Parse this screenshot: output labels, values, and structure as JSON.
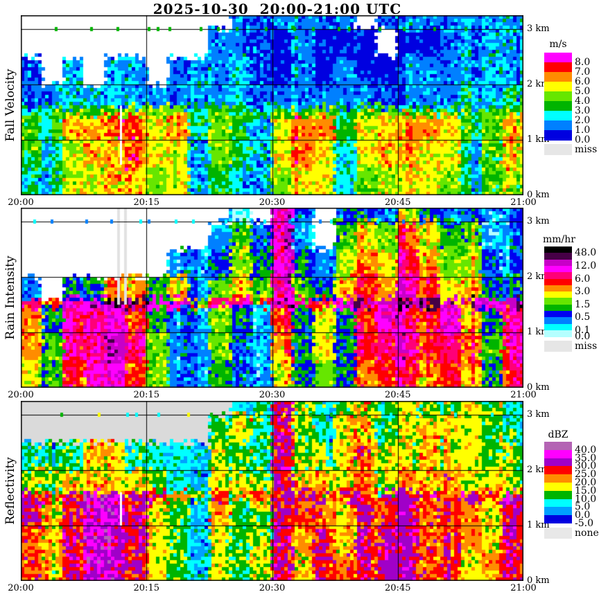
{
  "title": "2025-10-30  20:00-21:00 UTC",
  "x_axis": {
    "tick_labels": [
      "20:00",
      "20:15",
      "20:30",
      "20:45",
      "21:00"
    ],
    "gridline_times": [
      "20:15",
      "20:30",
      "20:45"
    ]
  },
  "y_axis": {
    "tick_labels": [
      "3 km",
      "2 km",
      "1 km",
      "0 km"
    ],
    "gridlines_km": [
      1,
      2,
      3
    ]
  },
  "chart_data": [
    {
      "type": "heatmap",
      "name": "fall_velocity",
      "ylabel": "Fall Velocity",
      "unit": "m/s",
      "time_range_utc": [
        "20:00",
        "21:00"
      ],
      "height_range_km": [
        0,
        3.25
      ],
      "bright_band_km": 1.5,
      "background": "#FFFFFF",
      "palette": {
        "levels": [
          0,
          1,
          2,
          3,
          4,
          5,
          6,
          7,
          8
        ],
        "colors": [
          "#0000E0",
          "#0080FF",
          "#00FFFF",
          "#00B400",
          "#66E600",
          "#FFFF00",
          "#FF8C00",
          "#FF0000",
          "#FF00FF"
        ]
      },
      "legend": {
        "unit": "m/s",
        "bands_top_to_bottom": [
          {
            "c": "#FF00FF",
            "l": "8.0"
          },
          {
            "c": "#FF0000",
            "l": "7.0"
          },
          {
            "c": "#FF8C00",
            "l": "6.0"
          },
          {
            "c": "#FFFF00",
            "l": "5.0"
          },
          {
            "c": "#66E600",
            "l": "4.0"
          },
          {
            "c": "#00B400",
            "l": "3.0"
          },
          {
            "c": "#00FFFF",
            "l": "2.0"
          },
          {
            "c": "#0080FF",
            "l": "1.0"
          },
          {
            "c": "#0000E0",
            "l": "0.0"
          }
        ],
        "special": {
          "c": "#E6E6E6",
          "l": "miss"
        }
      },
      "time_bin_minutes": 2.5,
      "row_edges_km": [
        3.25,
        3.0,
        2.5,
        2.0,
        1.6,
        1.45,
        1.0,
        0.5,
        0.0
      ],
      "grid": [
        [
          null,
          null,
          null,
          null,
          null,
          null,
          null,
          null,
          null,
          null,
          1.5,
          1.2,
          1.2,
          1.5,
          1.2,
          1.0,
          null,
          1.2,
          1.5,
          1.0,
          1.2,
          1.5,
          1.0,
          1.2
        ],
        [
          null,
          null,
          null,
          null,
          null,
          null,
          null,
          null,
          null,
          1.2,
          1.5,
          1.5,
          0.8,
          1.2,
          0.8,
          0.8,
          0.5,
          null,
          0.8,
          0.8,
          1.2,
          1.2,
          1.5,
          1.2
        ],
        [
          1.5,
          null,
          1.2,
          null,
          1.5,
          1.2,
          null,
          1.2,
          2.2,
          1.5,
          2.0,
          1.2,
          0.8,
          1.2,
          0.8,
          1.2,
          0.8,
          0.8,
          1.2,
          1.5,
          1.2,
          1.5,
          1.2,
          1.5
        ],
        [
          1.8,
          1.2,
          1.5,
          1.0,
          1.5,
          1.8,
          1.2,
          1.5,
          2.5,
          1.8,
          2.2,
          1.5,
          1.2,
          1.5,
          1.2,
          1.5,
          1.2,
          1.5,
          1.8,
          1.5,
          1.8,
          2.2,
          1.8,
          2.0
        ],
        [
          3.5,
          3.2,
          3.5,
          3.5,
          3.6,
          4.0,
          4.0,
          4.0,
          3.2,
          3.5,
          3.5,
          3.2,
          3.5,
          3.8,
          4.0,
          3.5,
          3.6,
          4.0,
          3.8,
          3.6,
          3.5,
          3.2,
          3.4,
          3.6
        ],
        [
          4.5,
          3.0,
          5.0,
          5.5,
          6.0,
          6.5,
          5.5,
          6.0,
          3.0,
          4.5,
          3.5,
          2.5,
          5.5,
          6.5,
          6.0,
          3.0,
          5.5,
          6.5,
          6.5,
          6.0,
          5.5,
          3.0,
          3.5,
          5.5
        ],
        [
          4.0,
          2.5,
          4.5,
          5.0,
          5.5,
          6.0,
          5.0,
          5.5,
          2.5,
          4.0,
          3.0,
          2.0,
          5.0,
          6.0,
          5.5,
          2.5,
          5.0,
          6.0,
          6.0,
          5.5,
          5.0,
          2.5,
          3.0,
          5.0
        ],
        [
          3.5,
          2.0,
          4.0,
          4.5,
          5.0,
          5.5,
          4.5,
          5.0,
          2.0,
          3.5,
          2.5,
          2.0,
          4.5,
          5.5,
          5.0,
          2.5,
          4.5,
          5.5,
          5.5,
          5.0,
          4.5,
          2.5,
          3.0,
          4.5
        ]
      ],
      "slits": [
        {
          "t": 0.197,
          "km": [
            0.55,
            1.62
          ],
          "w": 3,
          "color": "#FFFFFF"
        }
      ],
      "line_ticks": {
        "colors": [
          "#00B400"
        ],
        "count": 20
      }
    },
    {
      "type": "heatmap",
      "name": "rain_intensity",
      "ylabel": "Rain Intensity",
      "unit": "mm/hr",
      "time_range_utc": [
        "20:00",
        "21:00"
      ],
      "height_range_km": [
        0,
        3.25
      ],
      "bright_band_km": 1.5,
      "background": "#FFFFFF",
      "palette": {
        "levels": [
          0,
          0.1,
          0.2,
          0.5,
          1,
          1.5,
          2,
          3,
          4,
          6,
          8,
          12,
          24,
          48
        ],
        "colors": [
          "#B4FFFF",
          "#00FFFF",
          "#0080FF",
          "#0000F0",
          "#00B400",
          "#66E600",
          "#FFFF00",
          "#FF8C00",
          "#FF0000",
          "#FF0078",
          "#FF00FF",
          "#C800C8",
          "#460046",
          "#000000"
        ]
      },
      "legend": {
        "unit": "mm/hr",
        "bands_top_to_bottom": [
          {
            "c": "#000000",
            "l": "48.0"
          },
          {
            "c": "#460046",
            "l": null
          },
          {
            "c": "#C800C8",
            "l": "12.0"
          },
          {
            "c": "#FF00FF",
            "l": null
          },
          {
            "c": "#FF0078",
            "l": "6.0"
          },
          {
            "c": "#FF0000",
            "l": null
          },
          {
            "c": "#FF8C00",
            "l": "3.0"
          },
          {
            "c": "#FFFF00",
            "l": null
          },
          {
            "c": "#66E600",
            "l": "1.5"
          },
          {
            "c": "#00B400",
            "l": null
          },
          {
            "c": "#0000F0",
            "l": "0.5"
          },
          {
            "c": "#0080FF",
            "l": null
          },
          {
            "c": "#00FFFF",
            "l": "0.1"
          },
          {
            "c": "#B4FFFF",
            "l": "0.0"
          }
        ],
        "special": {
          "c": "#E6E6E6",
          "l": "miss"
        }
      },
      "time_bin_minutes": 2.5,
      "row_edges_km": [
        3.25,
        3.0,
        2.5,
        2.0,
        1.6,
        1.45,
        1.0,
        0.5,
        0.0
      ],
      "grid": [
        [
          null,
          null,
          null,
          null,
          null,
          null,
          null,
          null,
          null,
          null,
          0.15,
          null,
          8,
          0.3,
          null,
          0.3,
          0.6,
          0.3,
          2,
          0.6,
          0.3,
          0.6,
          0.3,
          0.3
        ],
        [
          null,
          null,
          null,
          null,
          null,
          null,
          null,
          null,
          null,
          0.3,
          1.8,
          0.6,
          8,
          0.15,
          null,
          1,
          2.5,
          1.5,
          4,
          2,
          1,
          1.5,
          0.4,
          0.3
        ],
        [
          null,
          null,
          null,
          null,
          null,
          null,
          null,
          0.2,
          0.2,
          0.8,
          2.5,
          1,
          10,
          0.6,
          0.4,
          1.5,
          3.5,
          2,
          6,
          3,
          1.5,
          2,
          0.6,
          0.4
        ],
        [
          0.3,
          null,
          0.6,
          1,
          3,
          3,
          1,
          2,
          0.4,
          1.5,
          3,
          1.5,
          10,
          1,
          0.8,
          2.5,
          4,
          3,
          8,
          4,
          2.5,
          3,
          1,
          0.8
        ],
        [
          6,
          3,
          8,
          15,
          30,
          25,
          10,
          8,
          2,
          6,
          8,
          4,
          15,
          6,
          5,
          8,
          15,
          20,
          30,
          25,
          15,
          20,
          15,
          20
        ],
        [
          3,
          0.8,
          6,
          8,
          10,
          5,
          1,
          0.4,
          0.3,
          1.5,
          1,
          0.4,
          4,
          0.8,
          2.5,
          0.6,
          4,
          8,
          6,
          4,
          8,
          3,
          1,
          6
        ],
        [
          3,
          1,
          6,
          10,
          12,
          6,
          1.5,
          0.4,
          0.3,
          1.5,
          0.8,
          0.4,
          3,
          0.8,
          2,
          0.8,
          4,
          6,
          8,
          4,
          6,
          4,
          1.5,
          6
        ],
        [
          2.5,
          1,
          5,
          8,
          10,
          5,
          1.5,
          0.4,
          0.3,
          1.2,
          0.6,
          0.4,
          2.5,
          0.8,
          1.5,
          0.8,
          3,
          5,
          6,
          3.5,
          5,
          3,
          1.2,
          5
        ]
      ],
      "slits": [
        {
          "t": 0.192,
          "km": [
            1.5,
            3.25
          ],
          "w": 4,
          "color": "#E2E2E2"
        },
        {
          "t": 0.205,
          "km": [
            1.5,
            3.25
          ],
          "w": 4,
          "color": "#E2E2E2"
        }
      ],
      "line_ticks": {
        "colors": [
          "#00FFFF",
          "#0080FF"
        ],
        "count": 24
      }
    },
    {
      "type": "heatmap",
      "name": "reflectivity",
      "ylabel": "Reflectivity",
      "unit": "dBZ",
      "time_range_utc": [
        "20:00",
        "21:00"
      ],
      "height_range_km": [
        0,
        3.25
      ],
      "bright_band_km": 1.5,
      "background": "#DADADA",
      "palette": {
        "levels": [
          -5,
          0,
          5,
          10,
          15,
          20,
          25,
          30,
          35,
          40
        ],
        "colors": [
          "#0000E0",
          "#00A0FF",
          "#00FFFF",
          "#00B400",
          "#FFFF00",
          "#FF8C00",
          "#FF0000",
          "#A000C8",
          "#FF00FF",
          "#B464B4"
        ]
      },
      "legend": {
        "unit": "dBZ",
        "bands_top_to_bottom": [
          {
            "c": "#B464B4",
            "l": "40.0"
          },
          {
            "c": "#FF00FF",
            "l": "35.0"
          },
          {
            "c": "#A000C8",
            "l": "30.0"
          },
          {
            "c": "#FF0000",
            "l": "25.0"
          },
          {
            "c": "#FF8C00",
            "l": "20.0"
          },
          {
            "c": "#FFFF00",
            "l": "15.0"
          },
          {
            "c": "#00B400",
            "l": "10.0"
          },
          {
            "c": "#00FFFF",
            "l": "5.0"
          },
          {
            "c": "#00A0FF",
            "l": "0.0"
          },
          {
            "c": "#0000E0",
            "l": "-5.0"
          }
        ],
        "special": {
          "c": "#E8E8E8",
          "l": "none"
        }
      },
      "time_bin_minutes": 2.5,
      "row_edges_km": [
        3.25,
        3.0,
        2.5,
        2.0,
        1.6,
        1.45,
        1.0,
        0.5,
        0.0
      ],
      "grid": [
        [
          null,
          null,
          null,
          null,
          null,
          null,
          null,
          null,
          null,
          null,
          8,
          5,
          27,
          12,
          8,
          12,
          18,
          12,
          15,
          18,
          12,
          15,
          10,
          5
        ],
        [
          null,
          null,
          null,
          null,
          null,
          null,
          null,
          null,
          null,
          12,
          15,
          8,
          27,
          10,
          8,
          15,
          18,
          12,
          15,
          20,
          15,
          18,
          12,
          8
        ],
        [
          5,
          5,
          8,
          15,
          15,
          8,
          5,
          6,
          5,
          15,
          12,
          8,
          27,
          12,
          12,
          15,
          20,
          15,
          18,
          20,
          18,
          15,
          12,
          10
        ],
        [
          12,
          10,
          15,
          18,
          18,
          15,
          10,
          8,
          5,
          18,
          15,
          10,
          27,
          15,
          15,
          18,
          20,
          18,
          20,
          22,
          20,
          18,
          15,
          12
        ],
        [
          26,
          22,
          27,
          32,
          33,
          28,
          26,
          22,
          18,
          26,
          24,
          22,
          28,
          26,
          28,
          26,
          28,
          30,
          32,
          30,
          28,
          30,
          28,
          32
        ],
        [
          26,
          18,
          26,
          32,
          33,
          28,
          18,
          10,
          8,
          20,
          14,
          12,
          27,
          20,
          24,
          18,
          26,
          28,
          32,
          26,
          28,
          22,
          18,
          26
        ],
        [
          24,
          16,
          26,
          33,
          34,
          26,
          16,
          10,
          8,
          18,
          12,
          12,
          26,
          18,
          26,
          18,
          26,
          30,
          33,
          28,
          26,
          20,
          18,
          26
        ],
        [
          22,
          16,
          26,
          33,
          33,
          26,
          16,
          10,
          8,
          16,
          12,
          12,
          26,
          18,
          26,
          20,
          28,
          32,
          33,
          28,
          26,
          18,
          20,
          26
        ]
      ],
      "slits": [
        {
          "t": 0.197,
          "km": [
            1.0,
            1.6
          ],
          "w": 3,
          "color": "#FFFFFF"
        }
      ],
      "line_ticks": {
        "colors": [
          "#00B400",
          "#00FFFF",
          "#FFFF00"
        ],
        "count": 22
      }
    }
  ]
}
